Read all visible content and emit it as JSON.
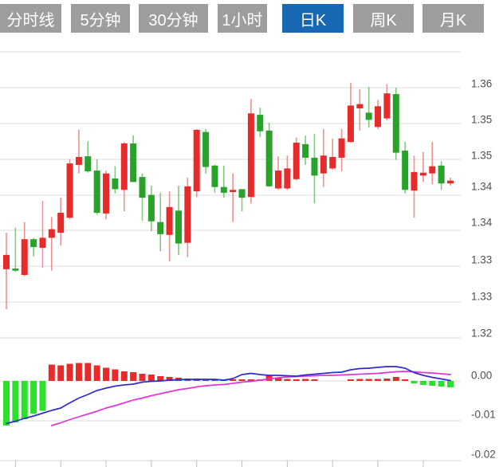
{
  "toolbar": {
    "tabs": [
      {
        "name": "tab-timeshare-line",
        "label": "分时线",
        "active": false
      },
      {
        "name": "tab-5min",
        "label": "5分钟",
        "active": false
      },
      {
        "name": "tab-30min",
        "label": "30分钟",
        "active": false
      },
      {
        "name": "tab-1hour",
        "label": "1小时",
        "active": false
      },
      {
        "name": "tab-daily-k",
        "label": "日K",
        "active": true
      },
      {
        "name": "tab-weekly-k",
        "label": "周K",
        "active": false
      },
      {
        "name": "tab-monthly-k",
        "label": "月K",
        "active": false
      }
    ]
  },
  "colors": {
    "up_body": "#e62b2b",
    "up_wick": "#f29090",
    "down_body": "#28a228",
    "down_wick": "#82c982",
    "macd_up_bar": "#e62b2b",
    "macd_down_bar": "#2ce12c",
    "dif_line": "#2d2dcf",
    "dea_line": "#e335d6",
    "grid_line": "#e4e4e4",
    "axis_line": "#dcdcdc",
    "axis_tick": "#b8bcc8",
    "axis_label": "#4e5156",
    "tab_bg": "#9d9d9d",
    "tab_active_bg": "#1767b3",
    "tab_text": "#ffffff"
  },
  "chart_data": {
    "type": "candlestick",
    "title": "",
    "legend_position": "none",
    "grid": true,
    "candle_format": "ohlc",
    "panels": [
      {
        "name": "price",
        "y_axis": {
          "labels": [
            "1.36",
            "1.35",
            "1.35",
            "1.34",
            "1.34",
            "1.33",
            "1.33",
            "1.32"
          ],
          "values": [
            1.36,
            1.355,
            1.35,
            1.345,
            1.34,
            1.335,
            1.33,
            1.325
          ],
          "range": [
            1.325,
            1.365
          ]
        },
        "candles": [
          [
            1.3346,
            1.3397,
            1.329,
            1.3366
          ],
          [
            1.3347,
            1.3404,
            1.3342,
            1.3344
          ],
          [
            1.3338,
            1.3412,
            1.3336,
            1.3388
          ],
          [
            1.3388,
            1.339,
            1.3364,
            1.3377
          ],
          [
            1.3376,
            1.3442,
            1.3348,
            1.339
          ],
          [
            1.339,
            1.3419,
            1.3344,
            1.3402
          ],
          [
            1.3397,
            1.3446,
            1.3379,
            1.3425
          ],
          [
            1.3418,
            1.35,
            1.3416,
            1.3494
          ],
          [
            1.3492,
            1.3541,
            1.348,
            1.3503
          ],
          [
            1.3504,
            1.3525,
            1.3481,
            1.3483
          ],
          [
            1.3484,
            1.35,
            1.3422,
            1.3425
          ],
          [
            1.3424,
            1.3484,
            1.3416,
            1.348
          ],
          [
            1.3473,
            1.349,
            1.3452,
            1.3458
          ],
          [
            1.3457,
            1.3524,
            1.3427,
            1.3522
          ],
          [
            1.3522,
            1.3533,
            1.3468,
            1.3468
          ],
          [
            1.3475,
            1.348,
            1.3414,
            1.3446
          ],
          [
            1.345,
            1.3463,
            1.3399,
            1.3413
          ],
          [
            1.3412,
            1.3453,
            1.3371,
            1.3395
          ],
          [
            1.3394,
            1.3455,
            1.3357,
            1.3433
          ],
          [
            1.3428,
            1.3463,
            1.3366,
            1.3382
          ],
          [
            1.3383,
            1.3474,
            1.3363,
            1.3462
          ],
          [
            1.3455,
            1.3542,
            1.3447,
            1.3541
          ],
          [
            1.3538,
            1.3542,
            1.348,
            1.3489
          ],
          [
            1.3491,
            1.3492,
            1.3453,
            1.3461
          ],
          [
            1.3461,
            1.3491,
            1.3446,
            1.3453
          ],
          [
            1.3454,
            1.348,
            1.3412,
            1.3457
          ],
          [
            1.3458,
            1.3458,
            1.3427,
            1.3446
          ],
          [
            1.3447,
            1.3584,
            1.3438,
            1.3564
          ],
          [
            1.3562,
            1.3572,
            1.3531,
            1.3539
          ],
          [
            1.354,
            1.3551,
            1.3461,
            1.3462
          ],
          [
            1.3459,
            1.3504,
            1.3457,
            1.3484
          ],
          [
            1.3459,
            1.3505,
            1.3457,
            1.3487
          ],
          [
            1.3472,
            1.353,
            1.347,
            1.3523
          ],
          [
            1.3521,
            1.3533,
            1.3492,
            1.3502
          ],
          [
            1.3502,
            1.3535,
            1.3438,
            1.3477
          ],
          [
            1.348,
            1.3542,
            1.3461,
            1.3505
          ],
          [
            1.3487,
            1.3529,
            1.3485,
            1.3503
          ],
          [
            1.3502,
            1.3542,
            1.3483,
            1.3529
          ],
          [
            1.3524,
            1.3607,
            1.3523,
            1.3575
          ],
          [
            1.3571,
            1.3598,
            1.354,
            1.3577
          ],
          [
            1.3565,
            1.3601,
            1.3544,
            1.3555
          ],
          [
            1.3545,
            1.3583,
            1.3542,
            1.3574
          ],
          [
            1.3557,
            1.3605,
            1.3554,
            1.3592
          ],
          [
            1.3591,
            1.36,
            1.3499,
            1.3509
          ],
          [
            1.3512,
            1.3524,
            1.3452,
            1.3457
          ],
          [
            1.3456,
            1.3505,
            1.3418,
            1.3482
          ],
          [
            1.3477,
            1.351,
            1.3468,
            1.3481
          ],
          [
            1.348,
            1.3524,
            1.3465,
            1.349
          ],
          [
            1.3491,
            1.3497,
            1.3457,
            1.3466
          ],
          [
            1.3466,
            1.3474,
            1.3463,
            1.347
          ]
        ],
        "last_price_marker": {
          "shape": "red-cross",
          "value": 1.347
        }
      },
      {
        "name": "macd",
        "y_axis": {
          "labels": [
            "0.00",
            "-0.01",
            "-0.02"
          ],
          "values": [
            0,
            -0.01,
            -0.02
          ],
          "range": [
            -0.022,
            0.005
          ]
        },
        "histogram": [
          -0.0112,
          -0.0104,
          -0.0096,
          -0.0082,
          -0.0075,
          0.0041,
          0.0039,
          0.0043,
          0.0045,
          0.0045,
          0.0039,
          0.0033,
          0.0029,
          0.0024,
          0.0022,
          0.0018,
          0.0016,
          0.0012,
          0.001,
          0.0008,
          0.0006,
          0.0006,
          0.0004,
          0.0004,
          0.0004,
          0.0004,
          0.0003,
          0.0004,
          0.0003,
          0.0014,
          0.0008,
          0.0005,
          0.0004,
          0.0005,
          0.0004,
          0,
          0,
          0,
          0.0004,
          0.0005,
          0.0005,
          0.0005,
          0.0006,
          0.001,
          0.0004,
          -0.0006,
          -0.001,
          -0.0012,
          -0.0014,
          -0.0016
        ],
        "dif": [
          -0.0107,
          -0.0101,
          -0.0094,
          -0.0088,
          -0.0081,
          -0.0074,
          -0.0068,
          -0.0055,
          -0.0043,
          -0.0034,
          -0.0024,
          -0.0018,
          -0.0013,
          -0.001,
          -0.0008,
          -0.0003,
          -0.0001,
          0.0,
          0.0002,
          0.0003,
          0.0004,
          0.0004,
          0.0004,
          0.0004,
          0.0002,
          0.0006,
          0.0016,
          0.0019,
          0.0016,
          0.0014,
          0.0014,
          0.0013,
          0.0012,
          0.0015,
          0.0017,
          0.0019,
          0.0021,
          0.0022,
          0.0028,
          0.0031,
          0.0032,
          0.0034,
          0.0036,
          0.0036,
          0.0032,
          0.0021,
          0.0014,
          0.0009,
          0.0005,
          0.0001
        ],
        "dea": [
          null,
          null,
          null,
          null,
          null,
          -0.0112,
          -0.0105,
          -0.0097,
          -0.009,
          -0.0083,
          -0.0076,
          -0.0068,
          -0.0062,
          -0.0055,
          -0.0048,
          -0.0043,
          -0.0037,
          -0.0032,
          -0.0027,
          -0.0022,
          -0.0019,
          -0.0015,
          -0.0012,
          -0.001,
          -0.0009,
          -0.0006,
          -0.0003,
          -0.0001,
          0.0002,
          0.0005,
          0.0008,
          0.001,
          0.0011,
          0.0012,
          0.0013,
          0.0014,
          0.0014,
          0.0015,
          0.0016,
          0.0017,
          0.0018,
          0.0019,
          0.0021,
          0.0023,
          0.0024,
          0.0023,
          0.0021,
          0.002,
          0.0018,
          0.0016
        ]
      }
    ]
  }
}
